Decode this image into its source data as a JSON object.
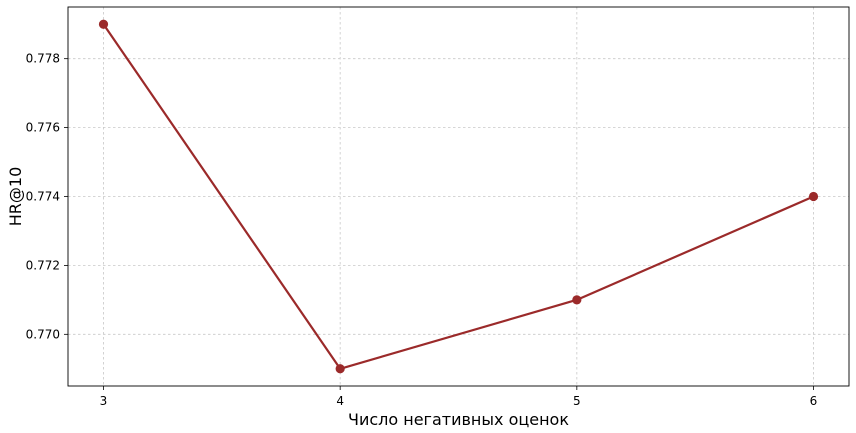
{
  "chart_data": {
    "type": "line",
    "x": [
      3,
      4,
      5,
      6
    ],
    "xticks": [
      3,
      4,
      5,
      6
    ],
    "xlim": [
      2.85,
      6.15
    ],
    "yticks": [
      0.77,
      0.772,
      0.774,
      0.776,
      0.778
    ],
    "ytick_labels": [
      "0.770",
      "0.772",
      "0.774",
      "0.776",
      "0.778"
    ],
    "ylim": [
      0.7685,
      0.7795
    ],
    "series": [
      {
        "values": [
          0.779,
          0.769,
          0.771,
          0.774
        ],
        "color": "#9b2a2a",
        "marker": "circle"
      }
    ],
    "xlabel": "Число негативных оценок",
    "ylabel": "HR@10",
    "grid": true
  }
}
